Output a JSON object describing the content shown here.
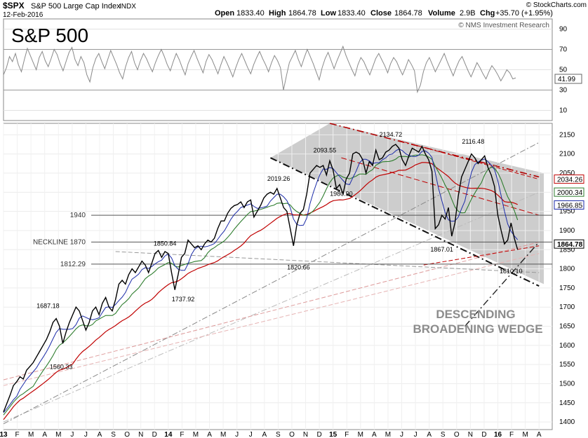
{
  "header": {
    "symbol": "$SPX",
    "name": "S&P 500 Large Cap Index",
    "exchange": "INDX",
    "date": "12-Feb-2016",
    "watermark": "© StockCharts.com",
    "open_label": "Open",
    "open": "1833.40",
    "high_label": "High",
    "high": "1864.78",
    "low_label": "Low",
    "low": "1833.40",
    "close_label": "Close",
    "close": "1864.78",
    "volume_label": "Volume",
    "volume": "2.9B",
    "chg_label": "Chg",
    "chg": "+35.70 (+1.95%)"
  },
  "rsi_panel": {
    "big_title": "S&P 500",
    "copyright": "© NMS Investment Research",
    "ticks": [
      90,
      70,
      50,
      30,
      10
    ],
    "current_label": "41.99",
    "current": 41.99,
    "ylim": [
      0,
      100
    ],
    "values": [
      45,
      52,
      63,
      58,
      66,
      55,
      48,
      60,
      71,
      64,
      57,
      50,
      62,
      68,
      59,
      53,
      61,
      70,
      65,
      56,
      49,
      58,
      67,
      72,
      60,
      54,
      63,
      57,
      45,
      38,
      52,
      61,
      66,
      58,
      51,
      60,
      69,
      62,
      55,
      47,
      41,
      53,
      62,
      68,
      57,
      50,
      59,
      66,
      61,
      54,
      48,
      57,
      64,
      70,
      63,
      55,
      49,
      58,
      66,
      60,
      52,
      45,
      56,
      63,
      69,
      61,
      54,
      47,
      58,
      65,
      60,
      53,
      46,
      55,
      63,
      57,
      50,
      43,
      52,
      60,
      66,
      59,
      52,
      46,
      55,
      62,
      68,
      61,
      55,
      48,
      57,
      64,
      59,
      52,
      30,
      44,
      57,
      63,
      69,
      60,
      53,
      62,
      70,
      63,
      56,
      48,
      40,
      52,
      61,
      67,
      59,
      51,
      59,
      66,
      73,
      64,
      57,
      50,
      44,
      55,
      62,
      58,
      51,
      45,
      53,
      61,
      66,
      60,
      54,
      47,
      56,
      62,
      58,
      51,
      45,
      52,
      60,
      55,
      49,
      28,
      35,
      48,
      57,
      62,
      55,
      48,
      54,
      60,
      66,
      58,
      51,
      44,
      52,
      59,
      63,
      56,
      49,
      43,
      50,
      57,
      52,
      46,
      41,
      48,
      54,
      50,
      45,
      39,
      44,
      50,
      47,
      41,
      42
    ]
  },
  "chart_data": {
    "type": "line",
    "title": "S&P 500",
    "ylim": [
      1380,
      2180
    ],
    "yticks": [
      1400,
      1450,
      1500,
      1550,
      1600,
      1650,
      1700,
      1750,
      1800,
      1850,
      1900,
      1950,
      2000,
      2050,
      2100,
      2150
    ],
    "xlabels": [
      "13",
      "F",
      "M",
      "A",
      "M",
      "J",
      "J",
      "A",
      "S",
      "O",
      "N",
      "D",
      "14",
      "F",
      "M",
      "A",
      "M",
      "J",
      "J",
      "A",
      "S",
      "O",
      "N",
      "D",
      "15",
      "F",
      "M",
      "A",
      "M",
      "J",
      "J",
      "A",
      "S",
      "O",
      "N",
      "D",
      "16",
      "F",
      "M",
      "A"
    ],
    "x_start": 2013.0,
    "x_end": 2016.33,
    "series": [
      {
        "role": "price",
        "color": "#000000",
        "x": [
          2013.0,
          2013.02,
          2013.04,
          2013.06,
          2013.08,
          2013.1,
          2013.12,
          2013.14,
          2013.16,
          2013.18,
          2013.2,
          2013.22,
          2013.24,
          2013.26,
          2013.28,
          2013.3,
          2013.32,
          2013.34,
          2013.36,
          2013.38,
          2013.4,
          2013.42,
          2013.44,
          2013.46,
          2013.48,
          2013.5,
          2013.52,
          2013.54,
          2013.56,
          2013.58,
          2013.6,
          2013.62,
          2013.64,
          2013.66,
          2013.68,
          2013.7,
          2013.72,
          2013.74,
          2013.76,
          2013.78,
          2013.8,
          2013.82,
          2013.84,
          2013.86,
          2013.88,
          2013.9,
          2013.92,
          2013.94,
          2013.96,
          2013.98,
          2014.0,
          2014.02,
          2014.04,
          2014.06,
          2014.08,
          2014.1,
          2014.12,
          2014.14,
          2014.16,
          2014.18,
          2014.2,
          2014.22,
          2014.24,
          2014.26,
          2014.28,
          2014.3,
          2014.32,
          2014.34,
          2014.36,
          2014.38,
          2014.4,
          2014.42,
          2014.44,
          2014.46,
          2014.48,
          2014.5,
          2014.52,
          2014.54,
          2014.56,
          2014.58,
          2014.6,
          2014.62,
          2014.64,
          2014.66,
          2014.68,
          2014.7,
          2014.72,
          2014.74,
          2014.76,
          2014.78,
          2014.8,
          2014.82,
          2014.84,
          2014.86,
          2014.88,
          2014.9,
          2014.92,
          2014.94,
          2014.96,
          2014.98,
          2015.0,
          2015.02,
          2015.04,
          2015.06,
          2015.08,
          2015.1,
          2015.12,
          2015.14,
          2015.16,
          2015.18,
          2015.2,
          2015.22,
          2015.24,
          2015.26,
          2015.28,
          2015.3,
          2015.32,
          2015.34,
          2015.36,
          2015.38,
          2015.4,
          2015.42,
          2015.44,
          2015.46,
          2015.48,
          2015.5,
          2015.52,
          2015.54,
          2015.56,
          2015.58,
          2015.6,
          2015.62,
          2015.64,
          2015.66,
          2015.68,
          2015.7,
          2015.72,
          2015.74,
          2015.76,
          2015.78,
          2015.8,
          2015.82,
          2015.84,
          2015.86,
          2015.88,
          2015.9,
          2015.92,
          2015.94,
          2015.96,
          2015.98,
          2016.0,
          2016.02,
          2016.04,
          2016.06,
          2016.08,
          2016.1,
          2016.12
        ],
        "y": [
          1426,
          1448,
          1470,
          1495,
          1505,
          1518,
          1512,
          1535,
          1545,
          1555,
          1570,
          1585,
          1600,
          1615,
          1635,
          1660,
          1670,
          1650,
          1605,
          1635,
          1660,
          1680,
          1700,
          1690,
          1665,
          1640,
          1660,
          1690,
          1700,
          1680,
          1710,
          1725,
          1700,
          1690,
          1720,
          1760,
          1770,
          1760,
          1785,
          1800,
          1790,
          1805,
          1820,
          1810,
          1790,
          1815,
          1840,
          1848,
          1830,
          1845,
          1840,
          1790,
          1745,
          1785,
          1830,
          1840,
          1875,
          1865,
          1855,
          1860,
          1850,
          1865,
          1875,
          1870,
          1880,
          1905,
          1925,
          1925,
          1945,
          1958,
          1965,
          1968,
          1975,
          1960,
          1975,
          1980,
          1935,
          1950,
          1965,
          1985,
          1995,
          2000,
          1995,
          2010,
          1985,
          1960,
          1950,
          1905,
          1860,
          1915,
          1945,
          1955,
          1995,
          2050,
          2060,
          2070,
          2065,
          2070,
          2045,
          2082,
          2058,
          2010,
          2020,
          1995,
          2035,
          2050,
          2100,
          2105,
          2100,
          2085,
          2050,
          2080,
          2070,
          2110,
          2085,
          2090,
          2105,
          2110,
          2120,
          2125,
          2115,
          2085,
          2070,
          2095,
          2115,
          2110,
          2105,
          2120,
          2100,
          2085,
          2055,
          1905,
          1915,
          1940,
          1930,
          1960,
          1885,
          1920,
          1990,
          2040,
          2060,
          2080,
          2100,
          2090,
          2075,
          2085,
          2095,
          2065,
          2045,
          2015,
          1940,
          1900,
          1865,
          1875,
          1920,
          1880,
          1850
        ]
      },
      {
        "role": "ma-fast",
        "color": "#1a2aa8"
      },
      {
        "role": "ma-mid",
        "color": "#2e7d2e"
      },
      {
        "role": "ma-slow",
        "color": "#c00000"
      }
    ],
    "levels": [
      {
        "label": "1940",
        "value": 1940
      },
      {
        "label": "NECKLINE  1870",
        "value": 1870
      },
      {
        "label": "1812.29",
        "value": 1812.29
      }
    ],
    "pivots": [
      {
        "label": "1687.18",
        "x": 2013.27,
        "y": 1687
      },
      {
        "label": "1560.33",
        "x": 2013.35,
        "y": 1560
      },
      {
        "label": "1850.84",
        "x": 2013.98,
        "y": 1850
      },
      {
        "label": "1737.92",
        "x": 2014.09,
        "y": 1737
      },
      {
        "label": "2019.26",
        "x": 2014.67,
        "y": 2019
      },
      {
        "label": "1820.66",
        "x": 2014.79,
        "y": 1820
      },
      {
        "label": "2093.55",
        "x": 2014.95,
        "y": 2093
      },
      {
        "label": "1980.90",
        "x": 2015.05,
        "y": 1980
      },
      {
        "label": "2134.72",
        "x": 2015.35,
        "y": 2134
      },
      {
        "label": "1867.01",
        "x": 2015.66,
        "y": 1867
      },
      {
        "label": "2116.48",
        "x": 2015.85,
        "y": 2116
      },
      {
        "label": "1810.10",
        "x": 2016.08,
        "y": 1810
      }
    ],
    "price_labels": [
      {
        "label": "2034.26",
        "value": 2034.26,
        "color": "#c00000"
      },
      {
        "label": "2000.34",
        "value": 2000.34,
        "color": "#2e7d2e"
      },
      {
        "label": "1966.85",
        "value": 1966.85,
        "color": "#1a2aa8"
      },
      {
        "label": "1864.78",
        "value": 1864.78,
        "color": "#000000"
      }
    ],
    "annotation": [
      "DESCENDING",
      "BROADENING WEDGE"
    ]
  }
}
